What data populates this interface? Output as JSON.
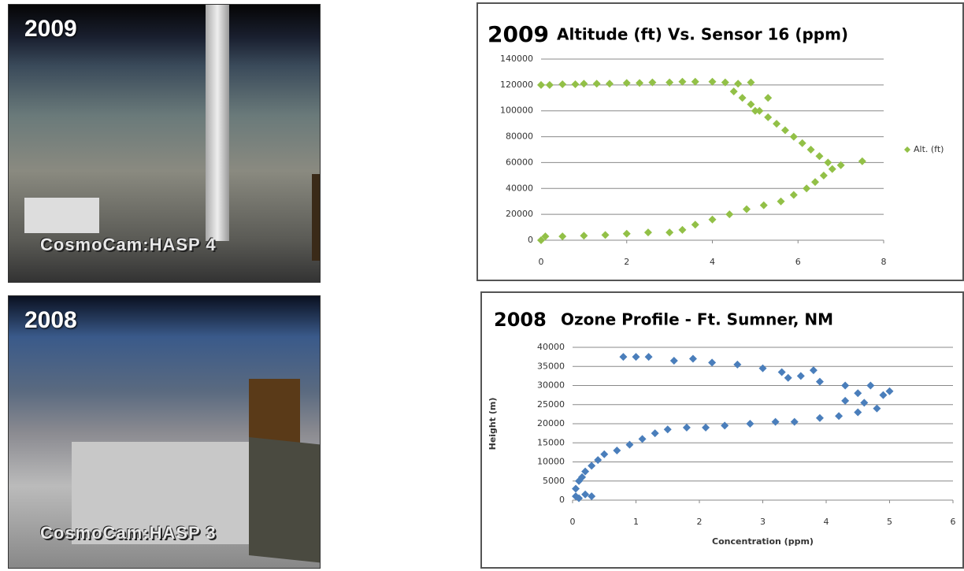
{
  "photos": [
    {
      "year": "2009",
      "caption": "CosmoCam:HASP 4"
    },
    {
      "year": "2008",
      "caption": "CosmoCam:HASP 3"
    }
  ],
  "chart_data": [
    {
      "type": "scatter",
      "label": "2009",
      "title": "Altitude (ft) Vs. Sensor 16 (ppm)",
      "xlim": [
        0,
        8
      ],
      "xticks": [
        0,
        2,
        4,
        6,
        8
      ],
      "ylim": [
        0,
        140000
      ],
      "yticks": [
        0,
        20000,
        40000,
        60000,
        80000,
        100000,
        120000,
        140000
      ],
      "grid": true,
      "legend": "right",
      "series": [
        {
          "name": "Alt. (ft)",
          "color": "#92c047",
          "x": [
            0,
            0.2,
            0.5,
            0.8,
            1,
            1.3,
            1.6,
            2,
            2.3,
            2.6,
            3,
            3.3,
            3.6,
            4,
            4.3,
            4.6,
            4.9,
            4.5,
            4.7,
            4.9,
            5.1,
            5.3,
            5.0,
            5.3,
            5.5,
            5.7,
            5.9,
            6.1,
            6.3,
            6.5,
            6.7,
            7.0,
            7.5,
            6.8,
            6.6,
            6.4,
            6.2,
            5.9,
            5.6,
            5.2,
            4.8,
            4.4,
            4.0,
            3.6,
            3.3,
            3.0,
            2.5,
            2.0,
            1.5,
            1.0,
            0.5,
            0.1,
            0
          ],
          "values": [
            120000,
            120000,
            120500,
            120500,
            121000,
            121000,
            121000,
            121500,
            121500,
            122000,
            122000,
            122500,
            122500,
            122500,
            122000,
            121000,
            122000,
            115000,
            110000,
            105000,
            100000,
            95000,
            100000,
            110000,
            90000,
            85000,
            80000,
            75000,
            70000,
            65000,
            60000,
            58000,
            61000,
            55000,
            50000,
            45000,
            40000,
            35000,
            30000,
            27000,
            24000,
            20000,
            16000,
            12000,
            8000,
            6000,
            6000,
            5000,
            4000,
            3500,
            3000,
            3000,
            0
          ]
        }
      ]
    },
    {
      "type": "scatter",
      "label": "2008",
      "title": "Ozone Profile - Ft. Sumner, NM",
      "xlabel": "Concentration (ppm)",
      "ylabel": "Height (m)",
      "xlim": [
        0,
        6
      ],
      "xticks": [
        0,
        1,
        2,
        3,
        4,
        5,
        6
      ],
      "ylim": [
        0,
        40000
      ],
      "yticks": [
        0,
        5000,
        10000,
        15000,
        20000,
        25000,
        30000,
        35000,
        40000
      ],
      "grid": true,
      "series": [
        {
          "name": "Height (m)",
          "color": "#4a7ebb",
          "x": [
            0.05,
            0.1,
            0.2,
            0.3,
            0.05,
            0.1,
            0.15,
            0.2,
            0.3,
            0.4,
            0.5,
            0.7,
            0.9,
            1.1,
            1.3,
            1.5,
            1.8,
            2.1,
            2.4,
            2.8,
            3.2,
            3.5,
            3.9,
            4.2,
            4.5,
            4.8,
            4.3,
            4.6,
            4.9,
            5.0,
            4.7,
            4.3,
            3.9,
            3.6,
            3.3,
            3.8,
            3.0,
            2.6,
            2.2,
            1.9,
            1.6,
            1.2,
            1.0,
            0.8,
            3.4,
            4.5
          ],
          "values": [
            1000,
            500,
            1500,
            1000,
            3000,
            5000,
            6000,
            7500,
            9000,
            10500,
            12000,
            13000,
            14500,
            16000,
            17500,
            18500,
            19000,
            19000,
            19500,
            20000,
            20500,
            20500,
            21500,
            22000,
            23000,
            24000,
            26000,
            25500,
            27500,
            28500,
            30000,
            30000,
            31000,
            32500,
            33500,
            34000,
            34500,
            35500,
            36000,
            37000,
            36500,
            37500,
            37500,
            37500,
            32000,
            28000
          ]
        }
      ]
    }
  ]
}
